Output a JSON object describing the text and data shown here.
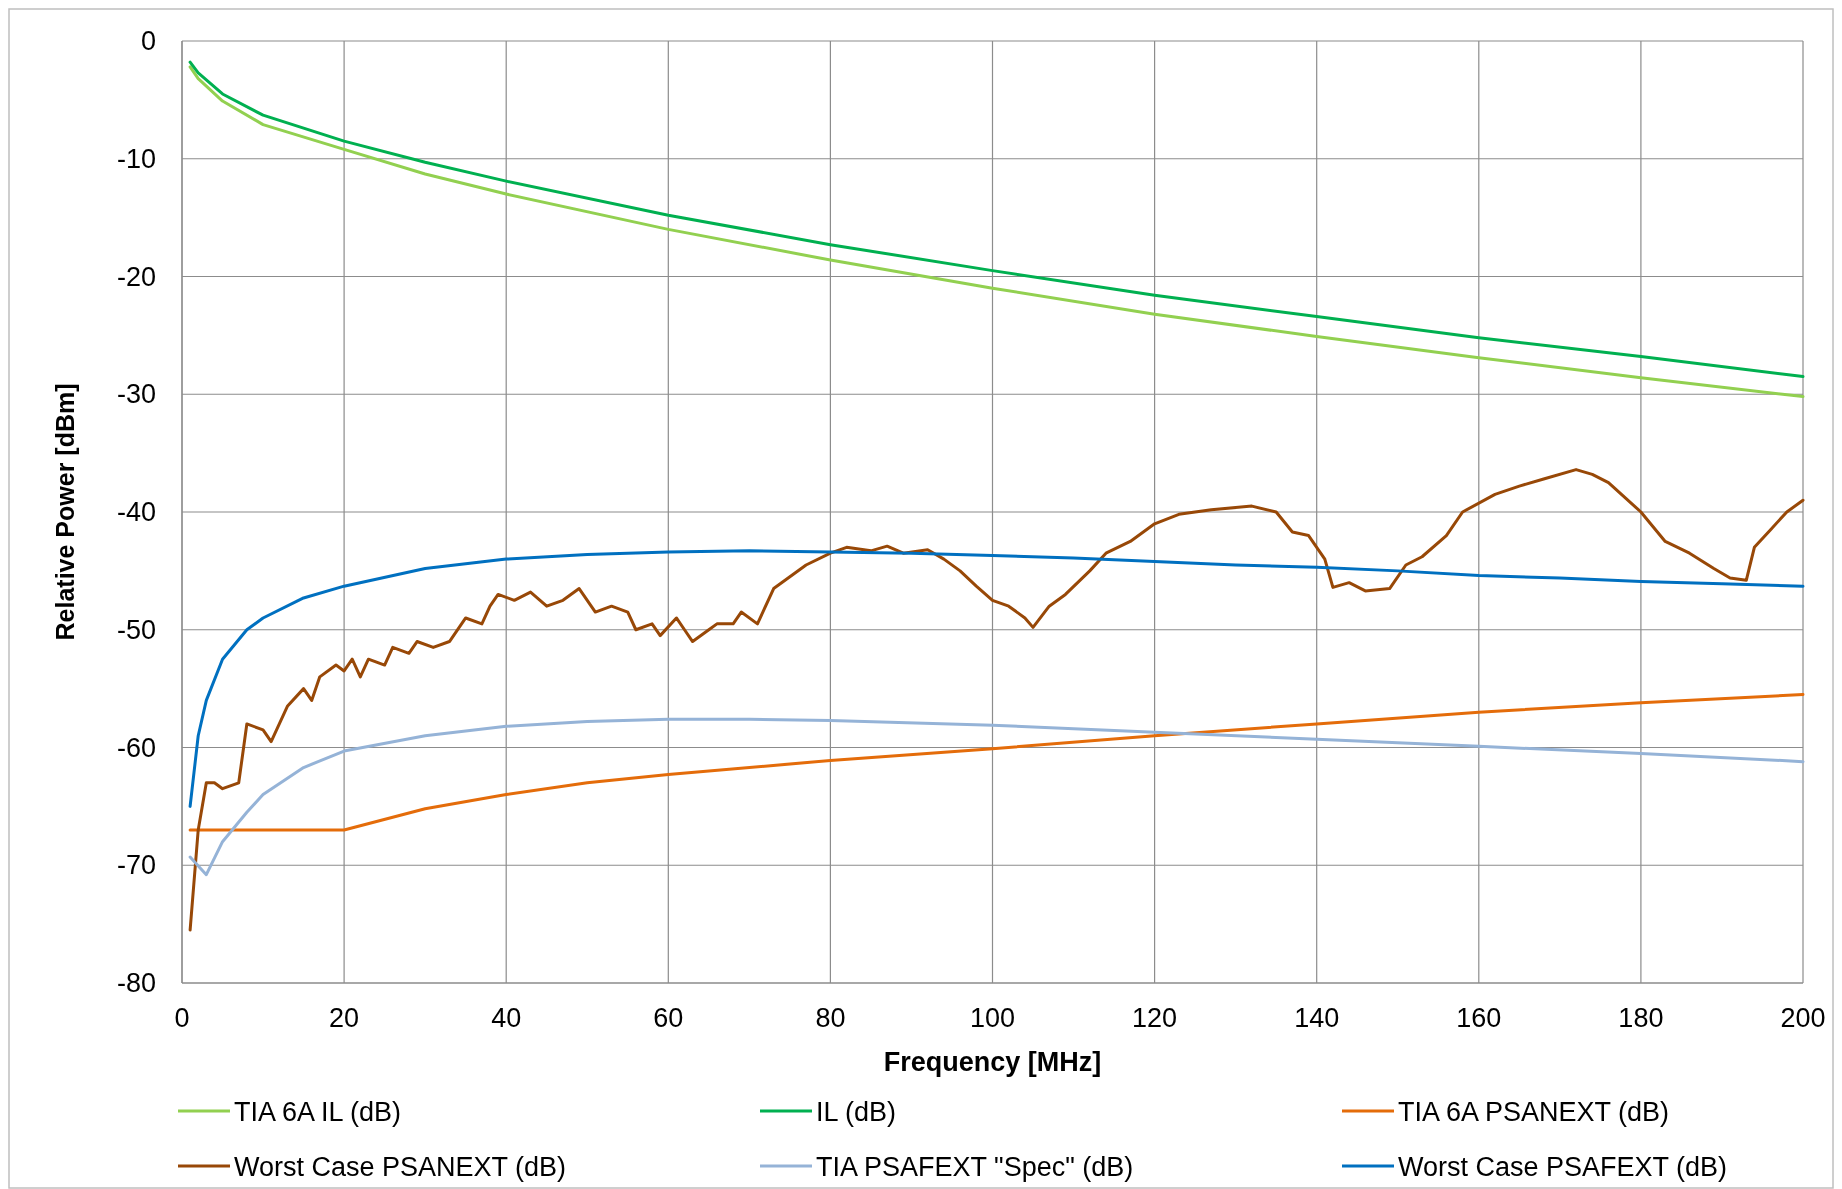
{
  "chart_data": {
    "type": "line",
    "xlabel": "Frequency [MHz]",
    "ylabel": "Relative Power [dBm]",
    "xlim": [
      0,
      200
    ],
    "xticks": [
      0,
      20,
      40,
      60,
      80,
      100,
      120,
      140,
      160,
      180,
      200
    ],
    "ylim": [
      -80,
      0
    ],
    "yticks": [
      -80,
      -70,
      -60,
      -50,
      -40,
      -30,
      -20,
      -10,
      0
    ],
    "grid": true,
    "legend": "bottom",
    "marker": "none",
    "line_style": "solid",
    "series": [
      {
        "name": "TIA 6A IL (dB)",
        "color": "#92d050",
        "x": [
          1,
          2,
          5,
          10,
          20,
          30,
          40,
          60,
          80,
          100,
          120,
          140,
          160,
          180,
          200
        ],
        "values": [
          -2.2,
          -3.2,
          -5.1,
          -7.1,
          -9.2,
          -11.3,
          -13.0,
          -16.0,
          -18.6,
          -21.0,
          -23.2,
          -25.1,
          -26.9,
          -28.6,
          -30.2
        ]
      },
      {
        "name": "IL (dB)",
        "color": "#00b050",
        "x": [
          1,
          2,
          5,
          10,
          20,
          30,
          40,
          60,
          80,
          100,
          120,
          140,
          160,
          180,
          200
        ],
        "values": [
          -1.8,
          -2.7,
          -4.5,
          -6.3,
          -8.5,
          -10.3,
          -11.9,
          -14.8,
          -17.3,
          -19.5,
          -21.6,
          -23.4,
          -25.2,
          -26.8,
          -28.5
        ]
      },
      {
        "name": "TIA 6A PSANEXT (dB)",
        "color": "#e46c0a",
        "x": [
          1,
          20,
          30,
          40,
          50,
          60,
          80,
          100,
          120,
          140,
          160,
          180,
          200
        ],
        "values": [
          -67,
          -67,
          -65.2,
          -64.0,
          -63,
          -62.3,
          -61.1,
          -60.1,
          -59,
          -58,
          -57,
          -56.2,
          -55.5
        ]
      },
      {
        "name": "Worst Case PSANEXT (dB)",
        "color": "#984807",
        "x": [
          1,
          2,
          3,
          4,
          5,
          7,
          8,
          10,
          11,
          13,
          15,
          16,
          17,
          19,
          20,
          21,
          22,
          23,
          25,
          26,
          28,
          29,
          31,
          33,
          35,
          37,
          38,
          39,
          41,
          43,
          45,
          47,
          49,
          51,
          53,
          55,
          56,
          58,
          59,
          61,
          62,
          63,
          65,
          66,
          68,
          69,
          71,
          73,
          75,
          77,
          80,
          82,
          85,
          87,
          89,
          92,
          94,
          96,
          98,
          100,
          102,
          104,
          105,
          107,
          109,
          112,
          114,
          117,
          120,
          123,
          127,
          132,
          135,
          137,
          139,
          141,
          142,
          144,
          146,
          149,
          151,
          153,
          156,
          158,
          162,
          165,
          168,
          172,
          174,
          176,
          180,
          183,
          186,
          189,
          191,
          193,
          194,
          196,
          198,
          200
        ],
        "values": [
          -75.5,
          -67,
          -63,
          -63,
          -63.5,
          -63,
          -58,
          -58.5,
          -59.5,
          -56.5,
          -55,
          -56,
          -54,
          -53,
          -53.5,
          -52.5,
          -54,
          -52.5,
          -53,
          -51.5,
          -52,
          -51,
          -51.5,
          -51,
          -49,
          -49.5,
          -48,
          -47,
          -47.5,
          -46.8,
          -48,
          -47.5,
          -46.5,
          -48.5,
          -48,
          -48.5,
          -50,
          -49.5,
          -50.5,
          -49,
          -50,
          -51,
          -50,
          -49.5,
          -49.5,
          -48.5,
          -49.5,
          -46.5,
          -45.5,
          -44.5,
          -43.5,
          -43,
          -43.3,
          -42.9,
          -43.5,
          -43.2,
          -44,
          -45,
          -46.3,
          -47.5,
          -48,
          -49,
          -49.8,
          -48,
          -47,
          -45,
          -43.5,
          -42.5,
          -41,
          -40.2,
          -39.8,
          -39.5,
          -40,
          -41.7,
          -42,
          -44,
          -46.4,
          -46,
          -46.7,
          -46.5,
          -44.5,
          -43.8,
          -42,
          -40,
          -38.5,
          -37.8,
          -37.2,
          -36.4,
          -36.8,
          -37.5,
          -40,
          -42.5,
          -43.5,
          -44.8,
          -45.6,
          -45.8,
          -43,
          -41.5,
          -40,
          -39
        ]
      },
      {
        "name": "TIA PSAFEXT \"Spec\" (dB)",
        "color": "#95b3d7",
        "x": [
          1,
          3,
          5,
          8,
          10,
          15,
          20,
          30,
          40,
          50,
          60,
          70,
          80,
          100,
          120,
          140,
          160,
          180,
          200
        ],
        "values": [
          -69.3,
          -70.8,
          -68,
          -65.5,
          -64,
          -61.7,
          -60.3,
          -59,
          -58.2,
          -57.8,
          -57.6,
          -57.6,
          -57.7,
          -58.1,
          -58.7,
          -59.3,
          -59.9,
          -60.5,
          -61.2
        ]
      },
      {
        "name": "Worst Case PSAFEXT (dB)",
        "color": "#0070c0",
        "x": [
          1,
          2,
          3,
          5,
          8,
          10,
          15,
          20,
          30,
          40,
          50,
          60,
          70,
          80,
          90,
          100,
          110,
          120,
          130,
          140,
          150,
          160,
          170,
          180,
          190,
          200
        ],
        "values": [
          -65,
          -59,
          -56,
          -52.5,
          -50,
          -49,
          -47.3,
          -46.3,
          -44.8,
          -44,
          -43.6,
          -43.4,
          -43.3,
          -43.4,
          -43.5,
          -43.7,
          -43.9,
          -44.2,
          -44.5,
          -44.7,
          -45,
          -45.4,
          -45.6,
          -45.9,
          -46.1,
          -46.3
        ]
      }
    ]
  }
}
